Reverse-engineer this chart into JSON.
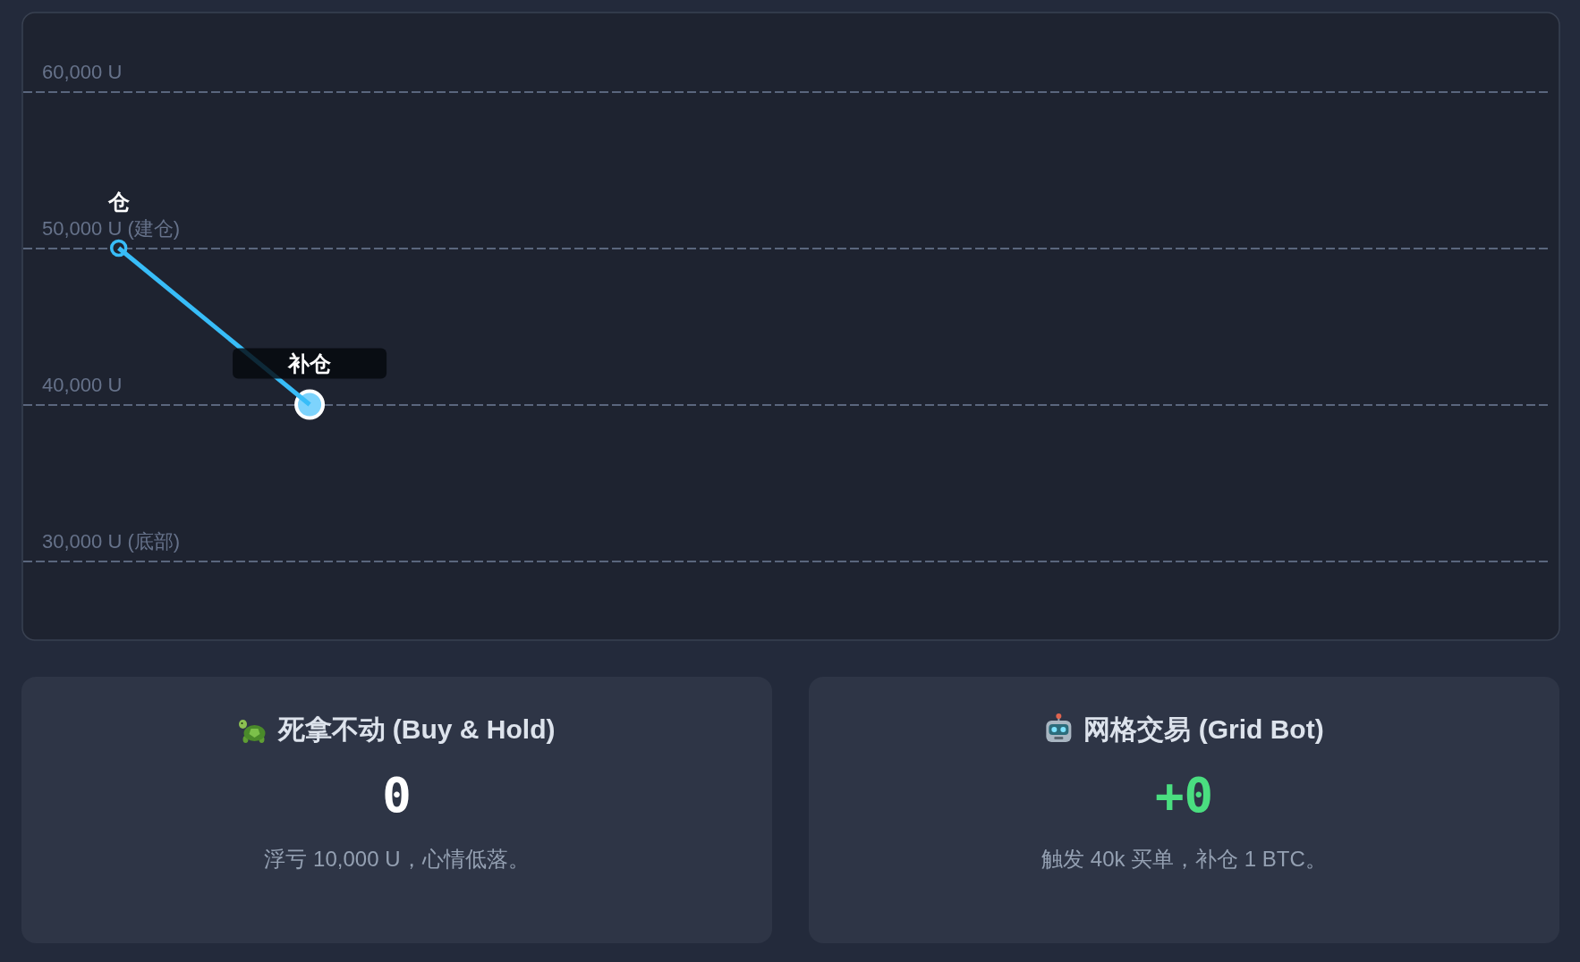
{
  "chart_data": [
    {
      "type": "line",
      "categories": [
        null,
        null,
        null,
        null,
        null,
        null,
        null,
        null
      ],
      "series": [
        {
          "color": "#38bdf8",
          "values": [
            50000,
            40000,
            null,
            null,
            null,
            null,
            null,
            null
          ]
        }
      ],
      "ylim": [
        25000,
        65000
      ],
      "yticks": [
        {
          "value": 30000,
          "label": "30,000 U (底部)"
        },
        {
          "value": 40000,
          "label": "40,000 U"
        },
        {
          "value": 50000,
          "label": "50,000 U (建仓)"
        },
        {
          "value": 60000,
          "label": "60,000 U"
        }
      ],
      "grid": "y",
      "tick_labels": "y",
      "marker": "circle",
      "line_style": "solid",
      "annotations": [
        {
          "text": "仓",
          "y": 50000
        },
        {
          "text": "补仓",
          "y": 40000
        }
      ]
    },
    {
      "type": "other",
      "title": "死拿不动 (Buy & Hold)",
      "color": "#ffffff",
      "annotations": [
        "0",
        "浮亏 10,000 U，心情低落。"
      ]
    },
    {
      "type": "other",
      "title": "网格交易 (Grid Bot)",
      "color": "#4ade80",
      "annotations": [
        "+0",
        "触发 40k 买单，补仓 1 BTC。"
      ]
    }
  ]
}
